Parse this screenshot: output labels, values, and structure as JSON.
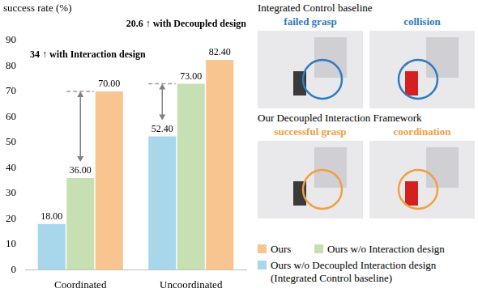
{
  "chart_data": {
    "type": "bar",
    "y_label": "success rate (%)",
    "categories": [
      "Coordinated",
      "Uncoordinated"
    ],
    "series": [
      {
        "name": "Ours w/o Decoupled Interaction design (Integrated Control baseline)",
        "color": "#a8d6eb",
        "values": [
          18,
          52.4
        ],
        "value_labels": [
          "18.00",
          "52.40"
        ]
      },
      {
        "name": "Ours w/o Interaction design",
        "color": "#c6e0b4",
        "values": [
          36,
          73
        ],
        "value_labels": [
          "36.00",
          "73.00"
        ]
      },
      {
        "name": "Ours",
        "color": "#f8c490",
        "values": [
          70,
          82.4
        ],
        "value_labels": [
          "70.00",
          "82.40"
        ]
      }
    ],
    "ylim": [
      0,
      90
    ],
    "yticks": [
      0,
      10,
      20,
      30,
      40,
      50,
      60,
      70,
      80,
      90
    ],
    "grid": false,
    "data_labels": true,
    "legend": "lower right",
    "annotations": [
      {
        "text": "34 ↑ with Interaction design",
        "category": "Coordinated",
        "from": "Ours w/o Interaction design",
        "to": "Ours"
      },
      {
        "text": "20.6 ↑ with Decoupled design",
        "category": "Uncoordinated",
        "from": "Ours w/o Decoupled Interaction design (Integrated Control baseline)",
        "to": "Ours w/o Interaction design"
      }
    ]
  },
  "image_panels": [
    {
      "title": "Integrated Control baseline",
      "captions": [
        "failed grasp",
        "collision"
      ]
    },
    {
      "title": "Our Decoupled Interaction Framework",
      "captions": [
        "successful grasp",
        "coordination"
      ]
    }
  ]
}
